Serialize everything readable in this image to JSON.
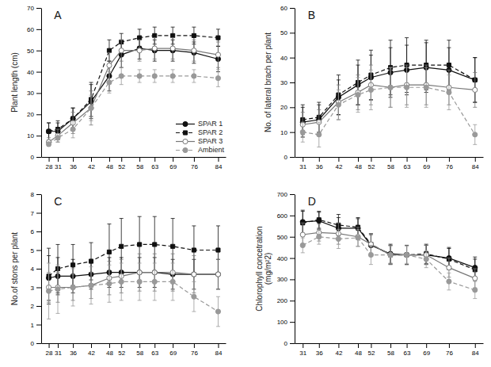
{
  "chart_data": [
    {
      "type": "line",
      "title": "A",
      "x": [
        28,
        31,
        36,
        42,
        48,
        52,
        58,
        63,
        69,
        76,
        84
      ],
      "xlim": [
        25.5,
        86.5
      ],
      "xticks": [
        28,
        31,
        36,
        42,
        48,
        52,
        58,
        63,
        69,
        76,
        84
      ],
      "ylabel": "Plant length (cm)",
      "ylim": [
        0,
        70
      ],
      "yticks": [
        0,
        10,
        20,
        30,
        40,
        50,
        60,
        70
      ],
      "grid": false,
      "legend": "lower right",
      "series": [
        {
          "name": "SPAR 1",
          "color": "#111111",
          "marker": "circle",
          "line_style": "solid",
          "values": [
            12,
            12,
            18,
            26,
            38,
            48,
            51,
            50,
            50,
            49,
            46
          ],
          "errors": [
            4,
            4,
            5,
            8,
            7,
            6,
            5,
            5,
            5,
            5,
            6
          ]
        },
        {
          "name": "SPAR 2",
          "color": "#111111",
          "marker": "square",
          "line_style": "dashed",
          "values": [
            12,
            13,
            18,
            27,
            50,
            54,
            56,
            57,
            57,
            57,
            56
          ],
          "errors": [
            4,
            4,
            5,
            8,
            5,
            4,
            4,
            4,
            4,
            4,
            4
          ]
        },
        {
          "name": "SPAR 3",
          "color": "#777777",
          "marker": "open-circle",
          "line_style": "solid",
          "values": [
            7,
            10,
            16,
            23,
            43,
            50,
            50,
            51,
            51,
            50,
            48
          ],
          "errors": [
            2,
            3,
            5,
            8,
            6,
            5,
            5,
            5,
            5,
            5,
            6
          ]
        },
        {
          "name": "Ambient",
          "color": "#999999",
          "marker": "circle",
          "line_style": "dashed",
          "values": [
            6,
            9,
            13,
            23,
            35,
            38,
            38,
            38,
            38,
            38,
            37
          ],
          "errors": [
            1,
            2,
            4,
            6,
            5,
            4,
            3,
            3,
            3,
            3,
            4
          ]
        }
      ]
    },
    {
      "type": "line",
      "title": "B",
      "x": [
        31,
        36,
        42,
        48,
        52,
        58,
        63,
        69,
        76,
        84
      ],
      "xlim": [
        28.5,
        86.5
      ],
      "xticks": [
        31,
        36,
        42,
        48,
        52,
        58,
        63,
        69,
        76,
        84
      ],
      "ylabel": "No. of lateral brach per plant",
      "ylim": [
        0,
        60
      ],
      "yticks": [
        0,
        10,
        20,
        30,
        40,
        50,
        60
      ],
      "grid": false,
      "series": [
        {
          "color": "#111111",
          "marker": "circle",
          "line_style": "solid",
          "values": [
            14,
            15,
            24,
            29,
            32,
            34,
            35,
            36,
            35,
            31
          ],
          "errors": [
            6,
            6,
            7,
            8,
            9,
            10,
            10,
            10,
            9,
            9
          ]
        },
        {
          "color": "#111111",
          "marker": "square",
          "line_style": "dashed",
          "values": [
            15,
            16,
            25,
            30,
            33,
            36,
            37,
            37,
            37,
            31
          ],
          "errors": [
            6,
            6,
            8,
            9,
            10,
            11,
            11,
            10,
            10,
            9
          ]
        },
        {
          "color": "#777777",
          "marker": "open-circle",
          "line_style": "solid",
          "values": [
            13,
            14,
            22,
            26,
            29,
            28,
            29,
            29,
            28,
            27
          ],
          "errors": [
            5,
            5,
            7,
            7,
            8,
            8,
            8,
            8,
            7,
            7
          ]
        },
        {
          "color": "#999999",
          "marker": "circle",
          "line_style": "dashed",
          "values": [
            10,
            9,
            21,
            25,
            27,
            28,
            28,
            28,
            26,
            9
          ],
          "errors": [
            4,
            5,
            6,
            7,
            8,
            8,
            8,
            8,
            7,
            4
          ]
        }
      ]
    },
    {
      "type": "line",
      "title": "C",
      "x": [
        28,
        31,
        36,
        42,
        48,
        52,
        58,
        63,
        69,
        76,
        84
      ],
      "xlim": [
        25.5,
        86.5
      ],
      "xticks": [
        28,
        31,
        36,
        42,
        48,
        52,
        58,
        63,
        69,
        76,
        84
      ],
      "ylabel": "No.of stons per plant",
      "ylim": [
        0,
        8
      ],
      "yticks": [
        0,
        1,
        2,
        3,
        4,
        5,
        6,
        7,
        8
      ],
      "grid": false,
      "series": [
        {
          "color": "#111111",
          "marker": "circle",
          "line_style": "solid",
          "values": [
            3.5,
            3.6,
            3.6,
            3.7,
            3.8,
            3.8,
            3.8,
            3.8,
            3.7,
            3.7,
            3.7
          ],
          "errors": [
            1.2,
            1.0,
            0.9,
            0.8,
            0.8,
            0.8,
            0.8,
            0.8,
            0.8,
            0.8,
            0.8
          ]
        },
        {
          "color": "#111111",
          "marker": "square",
          "line_style": "dashed",
          "values": [
            3.6,
            4.0,
            4.2,
            4.4,
            4.9,
            5.2,
            5.3,
            5.3,
            5.2,
            5.0,
            5.0
          ],
          "errors": [
            1.5,
            1.3,
            1.1,
            1.0,
            1.5,
            1.5,
            1.5,
            1.5,
            1.5,
            1.3,
            1.3
          ]
        },
        {
          "color": "#777777",
          "marker": "open-circle",
          "line_style": "solid",
          "values": [
            3.0,
            3.0,
            3.0,
            3.1,
            3.5,
            3.6,
            3.8,
            3.8,
            3.8,
            3.7,
            3.7
          ],
          "errors": [
            0.8,
            0.8,
            0.7,
            0.7,
            0.9,
            0.9,
            1.0,
            1.0,
            1.0,
            1.0,
            0.8
          ]
        },
        {
          "color": "#999999",
          "marker": "circle",
          "line_style": "dashed",
          "values": [
            2.8,
            2.9,
            3.0,
            3.1,
            3.2,
            3.3,
            3.3,
            3.3,
            3.3,
            2.5,
            1.7
          ],
          "errors": [
            1.5,
            1.3,
            1.0,
            1.0,
            1.0,
            1.0,
            1.0,
            1.0,
            1.0,
            0.8,
            0.8
          ]
        }
      ]
    },
    {
      "type": "line",
      "title": "D",
      "x": [
        31,
        36,
        42,
        48,
        52,
        58,
        63,
        69,
        76,
        84
      ],
      "xlim": [
        28.5,
        86.5
      ],
      "xticks": [
        31,
        36,
        42,
        48,
        52,
        58,
        63,
        69,
        76,
        84
      ],
      "ylabel": "Chlorophyll concetration\n(mg/m²2)",
      "ylim": [
        0,
        700
      ],
      "yticks": [
        0,
        100,
        200,
        300,
        400,
        500,
        600,
        700
      ],
      "grid": false,
      "series": [
        {
          "color": "#111111",
          "marker": "circle",
          "line_style": "solid",
          "values": [
            570,
            575,
            540,
            540,
            460,
            420,
            415,
            415,
            400,
            355
          ],
          "errors": [
            55,
            40,
            50,
            45,
            50,
            45,
            45,
            45,
            50,
            50
          ]
        },
        {
          "color": "#111111",
          "marker": "square",
          "line_style": "dashed",
          "values": [
            565,
            580,
            555,
            545,
            465,
            415,
            415,
            420,
            395,
            345
          ],
          "errors": [
            55,
            40,
            50,
            45,
            50,
            45,
            45,
            45,
            50,
            50
          ]
        },
        {
          "color": "#777777",
          "marker": "open-circle",
          "line_style": "solid",
          "values": [
            510,
            520,
            515,
            500,
            465,
            415,
            415,
            415,
            355,
            305
          ],
          "errors": [
            55,
            40,
            50,
            45,
            50,
            45,
            45,
            45,
            45,
            45
          ]
        },
        {
          "color": "#999999",
          "marker": "circle",
          "line_style": "dashed",
          "values": [
            460,
            500,
            490,
            495,
            415,
            415,
            415,
            395,
            290,
            250
          ],
          "errors": [
            35,
            35,
            45,
            40,
            45,
            40,
            40,
            40,
            40,
            40
          ]
        }
      ]
    }
  ]
}
